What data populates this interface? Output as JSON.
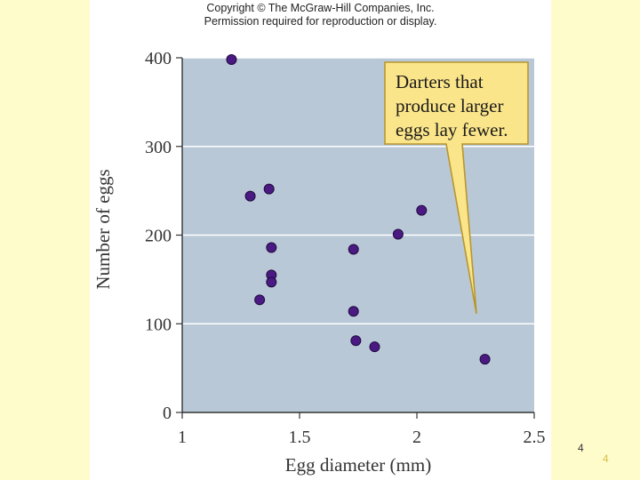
{
  "copyright": {
    "line1": "Copyright © The McGraw-Hill Companies, Inc.",
    "line2": "Permission required for reproduction or display."
  },
  "colors": {
    "slide_background": "#fffccc",
    "plot_background": "#b9c8d6",
    "gridline": "#ffffff",
    "point_fill": "#4a1a82",
    "point_stroke": "#1e0a40",
    "callout_fill": "#fbe58a",
    "callout_stroke": "#b8962e"
  },
  "chart_data": {
    "type": "scatter",
    "title": "",
    "xlabel": "Egg diameter (mm)",
    "ylabel": "Number of eggs",
    "xlim": [
      1,
      2.5
    ],
    "ylim": [
      0,
      400
    ],
    "x_ticks": [
      "1",
      "1.5",
      "2",
      "2.5"
    ],
    "y_ticks": [
      "0",
      "100",
      "200",
      "300",
      "400"
    ],
    "grid": "horizontal",
    "annotation": {
      "lines": [
        "Darters that",
        "produce larger",
        "eggs lay fewer."
      ],
      "placement": "top-right"
    },
    "points": [
      {
        "x": 1.21,
        "y": 398
      },
      {
        "x": 1.29,
        "y": 244
      },
      {
        "x": 1.37,
        "y": 252
      },
      {
        "x": 1.38,
        "y": 186
      },
      {
        "x": 1.38,
        "y": 155
      },
      {
        "x": 1.38,
        "y": 147
      },
      {
        "x": 1.33,
        "y": 127
      },
      {
        "x": 1.73,
        "y": 184
      },
      {
        "x": 1.73,
        "y": 114
      },
      {
        "x": 1.74,
        "y": 81
      },
      {
        "x": 1.82,
        "y": 74
      },
      {
        "x": 1.92,
        "y": 201
      },
      {
        "x": 2.02,
        "y": 228
      },
      {
        "x": 2.29,
        "y": 60
      }
    ]
  },
  "slide": {
    "page_number": "4",
    "page_number_footer": "4"
  }
}
